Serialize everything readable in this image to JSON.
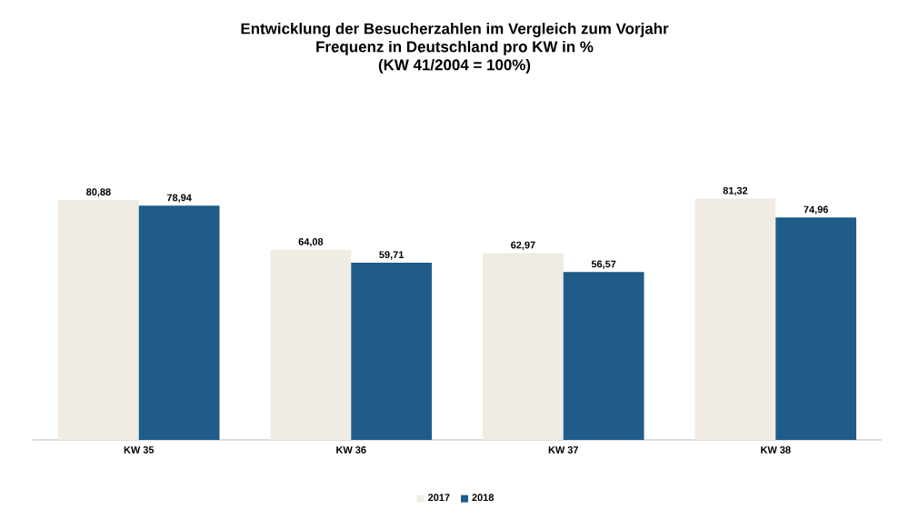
{
  "chart_data": {
    "type": "bar",
    "title": "Entwicklung der Besucherzahlen im Vergleich zum Vorjahr",
    "subtitle": "Frequenz in Deutschland pro KW in %",
    "annotations": [
      "(KW 41/2004 = 100%)"
    ],
    "categories": [
      "KW 35",
      "KW 36",
      "KW 37",
      "KW 38"
    ],
    "series": [
      {
        "name": "2017",
        "color": "#f0ece4",
        "values": [
          80.88,
          64.08,
          62.97,
          81.32
        ],
        "value_labels": [
          "80,88",
          "64,08",
          "62,97",
          "81,32"
        ]
      },
      {
        "name": "2018",
        "color": "#205c8a",
        "values": [
          78.94,
          59.71,
          56.57,
          74.96
        ],
        "value_labels": [
          "78,94",
          "59,71",
          "56,57",
          "74,96"
        ]
      }
    ],
    "legend": "bottom"
  }
}
